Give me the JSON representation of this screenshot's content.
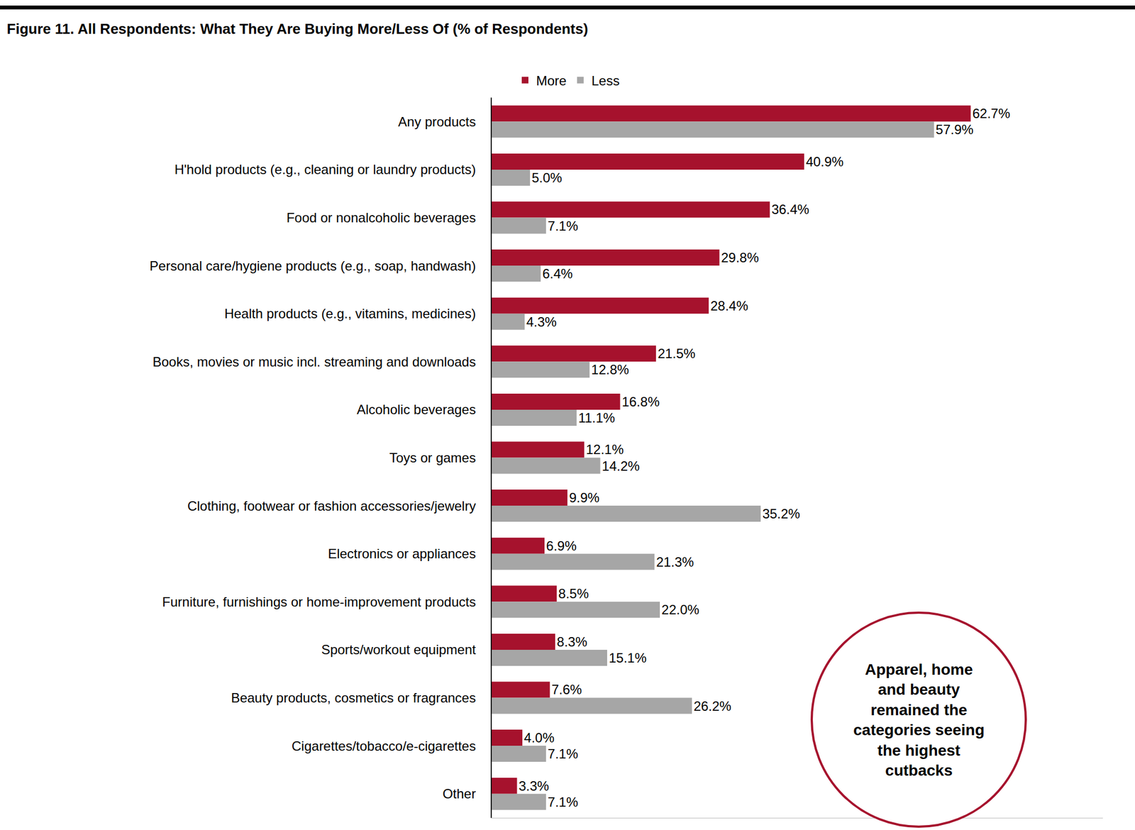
{
  "chart_data": {
    "type": "bar",
    "orientation": "horizontal",
    "title": "Figure 11. All Respondents: What They Are Buying More/Less Of (% of Respondents)",
    "categories": [
      "Any products",
      "H'hold products (e.g., cleaning or laundry products)",
      "Food or nonalcoholic beverages",
      "Personal care/hygiene products (e.g., soap, handwash)",
      "Health products (e.g., vitamins, medicines)",
      "Books, movies or music incl. streaming and downloads",
      "Alcoholic beverages",
      "Toys or games",
      "Clothing, footwear or fashion accessories/jewelry",
      "Electronics or appliances",
      "Furniture, furnishings or home-improvement products",
      "Sports/workout equipment",
      "Beauty products, cosmetics or fragrances",
      "Cigarettes/tobacco/e-cigarettes",
      "Other"
    ],
    "series": [
      {
        "name": "More",
        "color": "#a6122d",
        "values": [
          62.7,
          40.9,
          36.4,
          29.8,
          28.4,
          21.5,
          16.8,
          12.1,
          9.9,
          6.9,
          8.5,
          8.3,
          7.6,
          4.0,
          3.3
        ],
        "value_labels": [
          "62.7%",
          "40.9%",
          "36.4%",
          "29.8%",
          "28.4%",
          "21.5%",
          "16.8%",
          "12.1%",
          "9.9%",
          "6.9%",
          "8.5%",
          "8.3%",
          "7.6%",
          "4.0%",
          "3.3%"
        ]
      },
      {
        "name": "Less",
        "color": "#a6a6a6",
        "values": [
          57.9,
          5.0,
          7.1,
          6.4,
          4.3,
          12.8,
          11.1,
          14.2,
          35.2,
          21.3,
          22.0,
          15.1,
          26.2,
          7.1,
          7.1
        ],
        "value_labels": [
          "57.9%",
          "5.0%",
          "7.1%",
          "6.4%",
          "4.3%",
          "12.8%",
          "11.1%",
          "14.2%",
          "35.2%",
          "21.3%",
          "22.0%",
          "15.1%",
          "26.2%",
          "7.1%",
          "7.1%"
        ]
      }
    ],
    "xlim": [
      0,
      80
    ],
    "xticks": [],
    "tick_labels": "y",
    "grid": false,
    "legend": "top",
    "data_labels": true,
    "annotation": "Apparel, home\nand beauty\nremained the\ncategories seeing\nthe highest\ncutbacks"
  }
}
